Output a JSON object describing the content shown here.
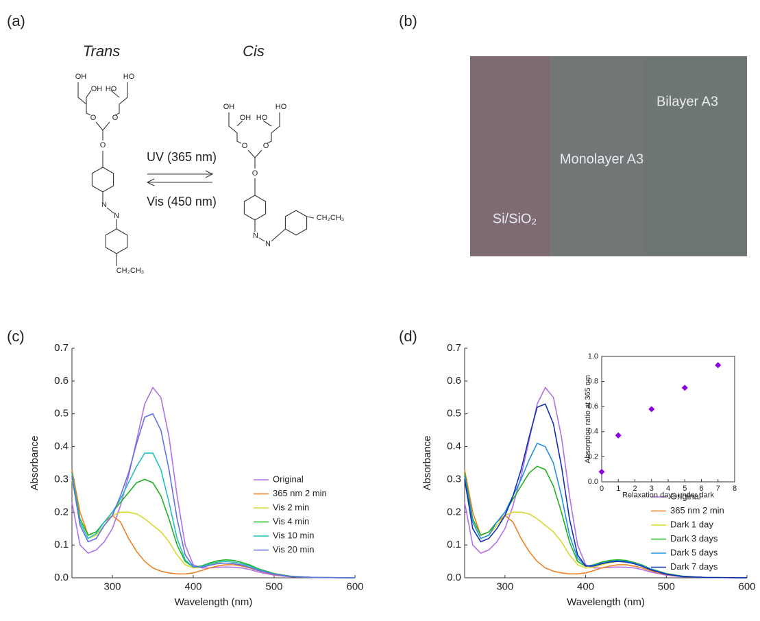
{
  "panel_labels": [
    "(a)",
    "(b)",
    "(c)",
    "(d)"
  ],
  "scheme": {
    "trans": "Trans",
    "cis": "Cis",
    "forward": "UV (365 nm)",
    "backward": "Vis (450 nm)",
    "trans_atoms": [
      "OH",
      "OH",
      "HO",
      "HO",
      "O",
      "O",
      "O",
      "N",
      "N",
      "CH₂CH₃"
    ],
    "cis_atoms": [
      "OH",
      "OH",
      "HO",
      "HO",
      "O",
      "O",
      "O",
      "N",
      "N",
      "CH₂CH₃"
    ]
  },
  "photo": {
    "labels": [
      "Bilayer A3",
      "Monolayer A3",
      "Si/SiO₂"
    ]
  },
  "chart_data": [
    {
      "type": "line",
      "x_label": "Wavelength (nm)",
      "y_label": "Absorbance",
      "x": [
        250,
        260,
        270,
        280,
        290,
        300,
        310,
        320,
        330,
        340,
        350,
        360,
        370,
        380,
        390,
        400,
        410,
        420,
        430,
        440,
        450,
        460,
        470,
        480,
        500,
        520,
        550,
        600
      ],
      "xlim": [
        250,
        600
      ],
      "xticks": [
        300,
        400,
        500,
        600
      ],
      "ylim": [
        0,
        0.7
      ],
      "yticks": [
        {
          "value": 0,
          "label": "0.0"
        },
        0.1,
        0.2,
        0.3,
        0.4,
        0.5,
        0.6,
        0.7
      ],
      "series": [
        {
          "name": "Original",
          "color": "#b070e8",
          "values": [
            0.23,
            0.1,
            0.075,
            0.085,
            0.11,
            0.15,
            0.22,
            0.31,
            0.42,
            0.53,
            0.58,
            0.55,
            0.43,
            0.25,
            0.1,
            0.04,
            0.03,
            0.03,
            0.032,
            0.033,
            0.032,
            0.03,
            0.025,
            0.018,
            0.008,
            0.003,
            0.001,
            0
          ]
        },
        {
          "name": "365 nm 2 min",
          "color": "#f07f20",
          "values": [
            0.33,
            0.2,
            0.13,
            0.14,
            0.17,
            0.19,
            0.17,
            0.12,
            0.08,
            0.05,
            0.03,
            0.02,
            0.015,
            0.012,
            0.012,
            0.015,
            0.022,
            0.03,
            0.036,
            0.04,
            0.04,
            0.036,
            0.03,
            0.022,
            0.01,
            0.004,
            0.001,
            0
          ]
        },
        {
          "name": "Vis 2 min",
          "color": "#d8d830",
          "values": [
            0.3,
            0.17,
            0.12,
            0.13,
            0.16,
            0.19,
            0.2,
            0.2,
            0.195,
            0.18,
            0.16,
            0.14,
            0.11,
            0.07,
            0.04,
            0.03,
            0.032,
            0.04,
            0.046,
            0.05,
            0.048,
            0.043,
            0.036,
            0.027,
            0.012,
            0.004,
            0.001,
            0
          ]
        },
        {
          "name": "Vis 4 min",
          "color": "#20b020",
          "values": [
            0.32,
            0.18,
            0.13,
            0.14,
            0.17,
            0.2,
            0.23,
            0.26,
            0.29,
            0.3,
            0.29,
            0.25,
            0.18,
            0.1,
            0.05,
            0.033,
            0.036,
            0.045,
            0.052,
            0.055,
            0.053,
            0.047,
            0.039,
            0.028,
            0.013,
            0.005,
            0.001,
            0
          ]
        },
        {
          "name": "Vis 10 min",
          "color": "#20c0c0",
          "values": [
            0.32,
            0.17,
            0.12,
            0.135,
            0.17,
            0.2,
            0.24,
            0.29,
            0.34,
            0.38,
            0.38,
            0.33,
            0.23,
            0.12,
            0.055,
            0.033,
            0.034,
            0.042,
            0.048,
            0.05,
            0.048,
            0.043,
            0.036,
            0.026,
            0.012,
            0.004,
            0.001,
            0
          ]
        },
        {
          "name": "Vis 20 min",
          "color": "#6070e0",
          "values": [
            0.31,
            0.16,
            0.11,
            0.12,
            0.16,
            0.19,
            0.25,
            0.32,
            0.41,
            0.49,
            0.5,
            0.45,
            0.33,
            0.18,
            0.07,
            0.035,
            0.032,
            0.038,
            0.043,
            0.045,
            0.043,
            0.039,
            0.032,
            0.023,
            0.011,
            0.004,
            0.001,
            0
          ]
        }
      ]
    },
    {
      "type": "line",
      "x_label": "Wavelength (nm)",
      "y_label": "Absorbance",
      "x": [
        250,
        260,
        270,
        280,
        290,
        300,
        310,
        320,
        330,
        340,
        350,
        360,
        370,
        380,
        390,
        400,
        410,
        420,
        430,
        440,
        450,
        460,
        470,
        480,
        500,
        520,
        550,
        600
      ],
      "xlim": [
        250,
        600
      ],
      "xticks": [
        300,
        400,
        500,
        600
      ],
      "ylim": [
        0,
        0.7
      ],
      "yticks": [
        {
          "value": 0,
          "label": "0.0"
        },
        0.1,
        0.2,
        0.3,
        0.4,
        0.5,
        0.6,
        0.7
      ],
      "series": [
        {
          "name": "Original",
          "color": "#b070e8",
          "values": [
            0.23,
            0.1,
            0.075,
            0.085,
            0.11,
            0.15,
            0.22,
            0.31,
            0.42,
            0.53,
            0.58,
            0.55,
            0.43,
            0.25,
            0.1,
            0.04,
            0.03,
            0.03,
            0.032,
            0.033,
            0.032,
            0.03,
            0.025,
            0.018,
            0.008,
            0.003,
            0.001,
            0
          ]
        },
        {
          "name": "365 nm 2 min",
          "color": "#f07f20",
          "values": [
            0.33,
            0.2,
            0.13,
            0.14,
            0.17,
            0.19,
            0.17,
            0.12,
            0.08,
            0.05,
            0.03,
            0.02,
            0.015,
            0.012,
            0.012,
            0.015,
            0.022,
            0.03,
            0.036,
            0.04,
            0.04,
            0.036,
            0.03,
            0.022,
            0.01,
            0.004,
            0.001,
            0
          ]
        },
        {
          "name": "Dark 1 day",
          "color": "#d8d830",
          "values": [
            0.3,
            0.17,
            0.12,
            0.13,
            0.16,
            0.19,
            0.2,
            0.2,
            0.195,
            0.18,
            0.16,
            0.14,
            0.11,
            0.07,
            0.04,
            0.03,
            0.032,
            0.04,
            0.046,
            0.05,
            0.048,
            0.043,
            0.036,
            0.027,
            0.012,
            0.004,
            0.001,
            0
          ]
        },
        {
          "name": "Dark 3 days",
          "color": "#20b020",
          "values": [
            0.32,
            0.18,
            0.13,
            0.14,
            0.17,
            0.2,
            0.24,
            0.28,
            0.32,
            0.34,
            0.33,
            0.28,
            0.2,
            0.11,
            0.05,
            0.035,
            0.04,
            0.048,
            0.053,
            0.055,
            0.053,
            0.047,
            0.039,
            0.028,
            0.013,
            0.005,
            0.001,
            0
          ]
        },
        {
          "name": "Dark 5 days",
          "color": "#2090e0",
          "values": [
            0.31,
            0.17,
            0.12,
            0.13,
            0.17,
            0.2,
            0.25,
            0.3,
            0.36,
            0.41,
            0.4,
            0.35,
            0.25,
            0.13,
            0.06,
            0.036,
            0.038,
            0.045,
            0.05,
            0.052,
            0.05,
            0.045,
            0.037,
            0.027,
            0.012,
            0.004,
            0.001,
            0
          ]
        },
        {
          "name": "Dark 7 days",
          "color": "#1030b0",
          "values": [
            0.3,
            0.15,
            0.11,
            0.12,
            0.15,
            0.19,
            0.25,
            0.33,
            0.43,
            0.52,
            0.53,
            0.47,
            0.34,
            0.18,
            0.07,
            0.036,
            0.036,
            0.043,
            0.048,
            0.05,
            0.048,
            0.043,
            0.035,
            0.025,
            0.011,
            0.004,
            0.001,
            0
          ]
        }
      ]
    },
    {
      "type": "scatter",
      "x_label": "Relaxation days under dark",
      "y_label": "Absorption ratio at 365 nm",
      "x": [
        0,
        1,
        3,
        5,
        7
      ],
      "values": [
        0.08,
        0.37,
        0.58,
        0.75,
        0.93
      ],
      "color": "#8a00e0",
      "marker": "diamond",
      "xlim": [
        0,
        8
      ],
      "xticks": [
        0,
        1,
        2,
        3,
        4,
        5,
        6,
        7,
        8
      ],
      "ylim": [
        0,
        1
      ],
      "yticks": [
        {
          "value": 0,
          "label": "0.0"
        },
        0.2,
        0.4,
        0.6,
        0.8,
        {
          "value": 1,
          "label": "1.0"
        }
      ]
    }
  ]
}
